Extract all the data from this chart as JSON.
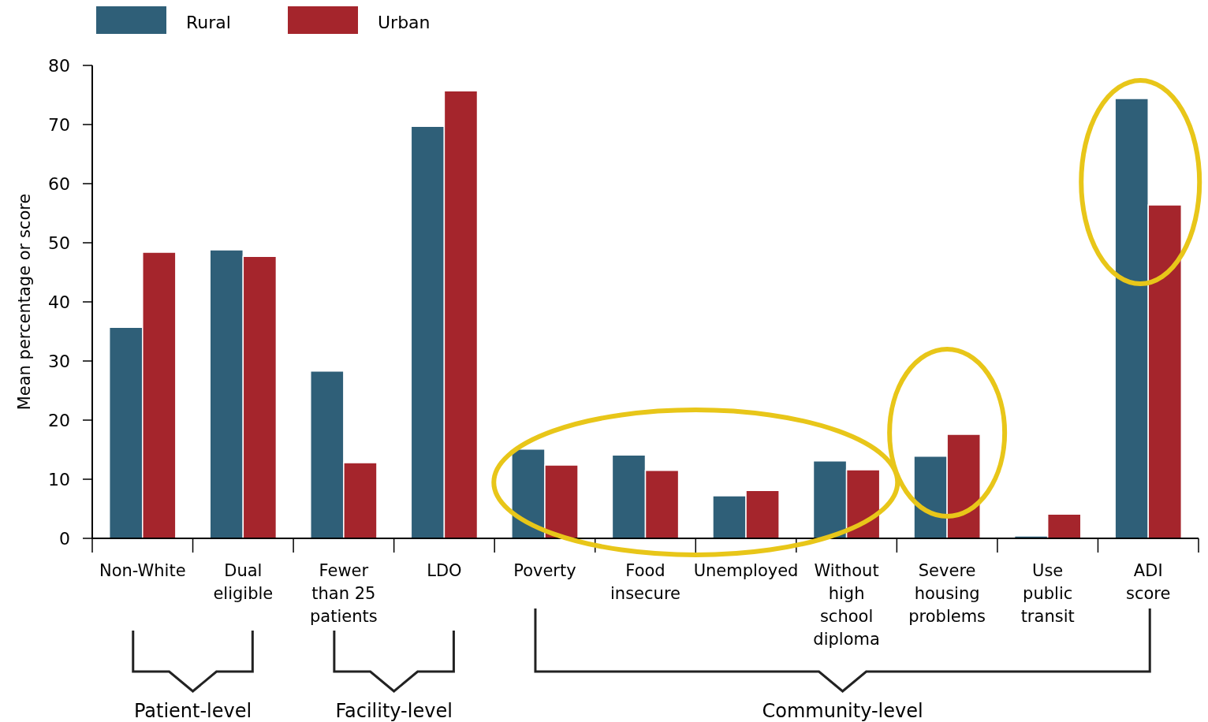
{
  "chart_data": {
    "type": "bar",
    "ylabel": "Mean percentage or score",
    "categories": [
      "Non-White",
      "Dual eligible",
      "Fewer than 25 patients",
      "LDO",
      "Poverty",
      "Food insecure",
      "Unemployed",
      "Without high school diploma",
      "Severe housing problems",
      "Use public transit",
      "ADI score"
    ],
    "series": [
      {
        "name": "Rural",
        "color": "#2f5f78",
        "values": [
          35.7,
          48.8,
          28.3,
          69.7,
          15.1,
          14.1,
          7.2,
          13.1,
          13.9,
          0.4,
          74.4
        ]
      },
      {
        "name": "Urban",
        "color": "#a5252c",
        "values": [
          48.4,
          47.7,
          12.8,
          75.7,
          12.4,
          11.5,
          8.1,
          11.6,
          17.6,
          4.1,
          56.4
        ]
      }
    ],
    "ylim": [
      0,
      80
    ],
    "yticks": [
      0,
      10,
      20,
      30,
      40,
      50,
      60,
      70,
      80
    ],
    "grid": false,
    "legend": "top left",
    "annotations": [
      "Patient-level",
      "Facility-level",
      "Community-level"
    ]
  }
}
